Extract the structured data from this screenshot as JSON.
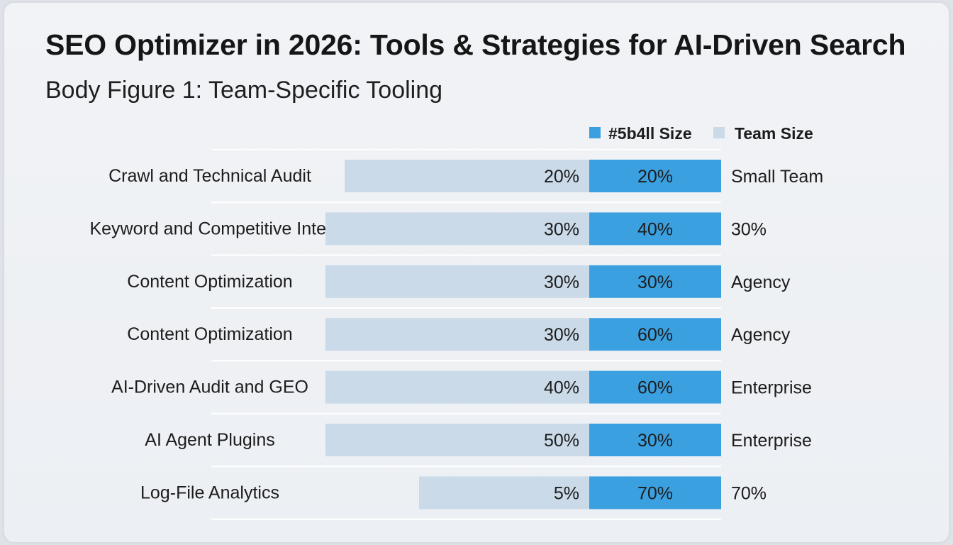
{
  "title": "SEO Optimizer in 2026: Tools & Strategies for AI-Driven Search",
  "subtitle": "Body Figure 1: Team-Specific Tooling",
  "colors": {
    "series_a": "#3ba0e0",
    "series_b": "#cbdae8",
    "background": "#eceff3"
  },
  "chart_data": {
    "type": "bar",
    "orientation": "horizontal",
    "legend_placement": "top-right",
    "grid": true,
    "categories": [
      "Crawl and Technical Audit",
      "Keyword and Competitive Intel",
      "Content Optimization",
      "Content Optimization",
      "AI-Driven Audit and GEO",
      "AI Agent Plugins",
      "Log-File Analytics"
    ],
    "series": [
      {
        "name": "#5b4ll Size",
        "values": [
          20,
          40,
          30,
          60,
          60,
          30,
          70
        ],
        "labels": [
          "20%",
          "40%",
          "30%",
          "60%",
          "60%",
          "30%",
          "70%"
        ]
      },
      {
        "name": "Team Size",
        "values": [
          20,
          30,
          30,
          30,
          40,
          50,
          5
        ],
        "labels": [
          "20%",
          "30%",
          "30%",
          "30%",
          "40%",
          "50%",
          "5%"
        ]
      }
    ],
    "right_labels": [
      "Small Team",
      "30%",
      "Agency",
      "Agency",
      "Enterprise",
      "Enterprise",
      "70%"
    ]
  }
}
